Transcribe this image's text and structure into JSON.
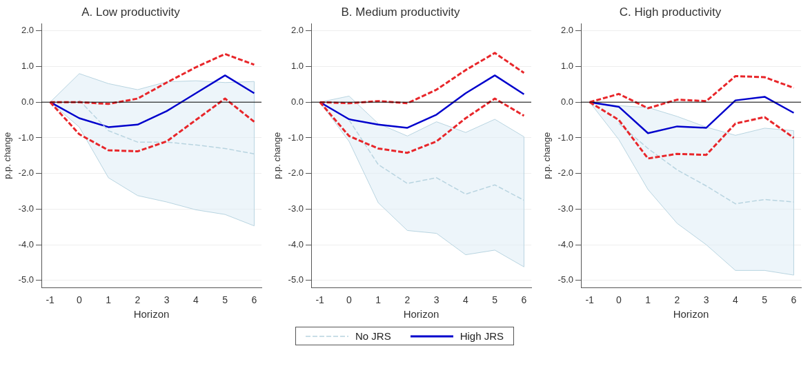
{
  "chart_data": [
    {
      "type": "line",
      "title": "A. Low productivity",
      "xlabel": "Horizon",
      "ylabel": "p.p. change",
      "x": [
        -1,
        0,
        1,
        2,
        3,
        4,
        5,
        6
      ],
      "xlim": [
        -1.3,
        6.25
      ],
      "xticks": [
        -1,
        0,
        1,
        2,
        3,
        4,
        5,
        6
      ],
      "ylim": [
        -5.2,
        2.2
      ],
      "yticks": [
        {
          "value": -5,
          "label": "-5.0"
        },
        {
          "value": -4,
          "label": "-4.0"
        },
        {
          "value": -3,
          "label": "-3.0"
        },
        {
          "value": -2,
          "label": "-2.0"
        },
        {
          "value": -1,
          "label": "-1.0"
        },
        {
          "value": 0,
          "label": "0.0"
        },
        {
          "value": 1,
          "label": "1.0"
        },
        {
          "value": 2,
          "label": "2.0"
        }
      ],
      "grid": "y",
      "marker": "none",
      "ref_lines": [
        {
          "axis": "y",
          "value": 0,
          "color": "#000000"
        }
      ],
      "series": [
        {
          "color": "#b8d4e0",
          "line_style": "dashed",
          "values": [
            null,
            0.05,
            -0.8,
            -1.12,
            -1.12,
            -1.2,
            -1.3,
            -1.45
          ],
          "lower": [
            0,
            -0.7,
            -2.12,
            -2.62,
            -2.8,
            -3.02,
            -3.15,
            -3.47
          ],
          "upper": [
            0,
            0.8,
            0.52,
            0.35,
            0.57,
            0.6,
            0.55,
            0.58
          ]
        },
        {
          "color": "#0000cc",
          "line_style": "solid",
          "values": [
            0,
            -0.45,
            -0.7,
            -0.63,
            -0.25,
            0.25,
            0.75,
            0.25
          ]
        },
        {
          "color": "#e8262a",
          "line_style": "dashed",
          "values": [
            0,
            0,
            -0.05,
            0.1,
            0.55,
            0.98,
            1.35,
            1.05
          ]
        },
        {
          "color": "#e8262a",
          "line_style": "dashed",
          "values": [
            0,
            -0.9,
            -1.35,
            -1.38,
            -1.1,
            -0.5,
            0.1,
            -0.55
          ]
        }
      ]
    },
    {
      "type": "line",
      "title": "B. Medium productivity",
      "xlabel": "Horizon",
      "ylabel": "p.p. change",
      "x": [
        -1,
        0,
        1,
        2,
        3,
        4,
        5,
        6
      ],
      "xlim": [
        -1.3,
        6.25
      ],
      "xticks": [
        -1,
        0,
        1,
        2,
        3,
        4,
        5,
        6
      ],
      "ylim": [
        -5.2,
        2.2
      ],
      "yticks": [
        {
          "value": -5,
          "label": "-5.0"
        },
        {
          "value": -4,
          "label": "-4.0"
        },
        {
          "value": -3,
          "label": "-3.0"
        },
        {
          "value": -2,
          "label": "-2.0"
        },
        {
          "value": -1,
          "label": "-1.0"
        },
        {
          "value": 0,
          "label": "0.0"
        },
        {
          "value": 1,
          "label": "1.0"
        },
        {
          "value": 2,
          "label": "2.0"
        }
      ],
      "grid": "y",
      "marker": "none",
      "legend": "bottom",
      "ref_lines": [
        {
          "axis": "y",
          "value": 0,
          "color": "#000000"
        }
      ],
      "series": [
        {
          "name": "No JRS",
          "color": "#b8d4e0",
          "line_style": "dashed",
          "values": [
            null,
            -0.5,
            -1.75,
            -2.28,
            -2.12,
            -2.58,
            -2.32,
            -2.75
          ],
          "lower": [
            0,
            -1.1,
            -2.82,
            -3.6,
            -3.68,
            -4.28,
            -4.15,
            -4.62
          ],
          "upper": [
            0,
            0.17,
            -0.6,
            -0.95,
            -0.55,
            -0.85,
            -0.48,
            -0.97
          ]
        },
        {
          "name": "High JRS",
          "color": "#0000cc",
          "line_style": "solid",
          "values": [
            0,
            -0.48,
            -0.63,
            -0.72,
            -0.35,
            0.25,
            0.75,
            0.22
          ]
        },
        {
          "color": "#e8262a",
          "line_style": "dashed",
          "values": [
            0,
            -0.03,
            0.03,
            -0.03,
            0.35,
            0.9,
            1.38,
            0.82
          ]
        },
        {
          "color": "#e8262a",
          "line_style": "dashed",
          "values": [
            0,
            -0.95,
            -1.3,
            -1.42,
            -1.1,
            -0.45,
            0.1,
            -0.38
          ]
        }
      ]
    },
    {
      "type": "line",
      "title": "C. High productivity",
      "xlabel": "Horizon",
      "ylabel": "p.p. change",
      "x": [
        -1,
        0,
        1,
        2,
        3,
        4,
        5,
        6
      ],
      "xlim": [
        -1.3,
        6.25
      ],
      "xticks": [
        -1,
        0,
        1,
        2,
        3,
        4,
        5,
        6
      ],
      "ylim": [
        -5.2,
        2.2
      ],
      "yticks": [
        {
          "value": -5,
          "label": "-5.0"
        },
        {
          "value": -4,
          "label": "-4.0"
        },
        {
          "value": -3,
          "label": "-3.0"
        },
        {
          "value": -2,
          "label": "-2.0"
        },
        {
          "value": -1,
          "label": "-1.0"
        },
        {
          "value": 0,
          "label": "0.0"
        },
        {
          "value": 1,
          "label": "1.0"
        },
        {
          "value": 2,
          "label": "2.0"
        }
      ],
      "grid": "y",
      "marker": "none",
      "ref_lines": [
        {
          "axis": "y",
          "value": 0,
          "color": "#000000"
        }
      ],
      "series": [
        {
          "color": "#b8d4e0",
          "line_style": "dashed",
          "values": [
            null,
            -0.6,
            -1.3,
            -1.9,
            -2.35,
            -2.85,
            -2.73,
            -2.8
          ],
          "lower": [
            0,
            -1.05,
            -2.45,
            -3.4,
            -4.0,
            -4.72,
            -4.72,
            -4.85
          ],
          "upper": [
            0,
            -0.1,
            -0.15,
            -0.4,
            -0.7,
            -0.93,
            -0.73,
            -0.8
          ]
        },
        {
          "color": "#0000cc",
          "line_style": "solid",
          "values": [
            0,
            -0.13,
            -0.87,
            -0.68,
            -0.72,
            0.05,
            0.15,
            -0.3
          ]
        },
        {
          "color": "#e8262a",
          "line_style": "dashed",
          "values": [
            0,
            0.23,
            -0.17,
            0.07,
            0.03,
            0.73,
            0.7,
            0.4
          ]
        },
        {
          "color": "#e8262a",
          "line_style": "dashed",
          "values": [
            0,
            -0.5,
            -1.58,
            -1.45,
            -1.48,
            -0.6,
            -0.42,
            -1.0
          ]
        }
      ]
    }
  ]
}
